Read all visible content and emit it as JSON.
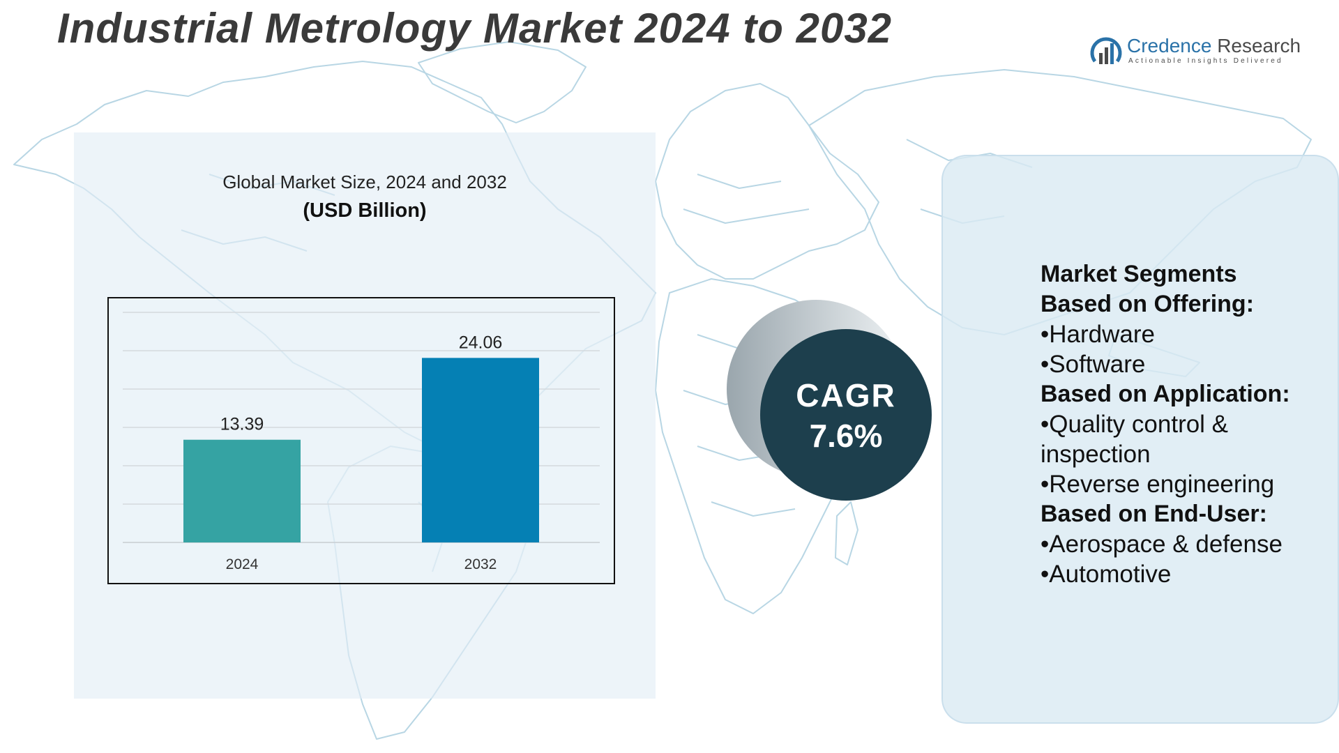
{
  "title": "Industrial Metrology Market 2024 to 2032",
  "logo": {
    "brand_primary": "Credence",
    "brand_secondary": "Research",
    "tagline": "Actionable Insights Delivered",
    "icon": "bar-chart-logo-icon"
  },
  "chart_data": {
    "type": "bar",
    "title": "Global Market Size, 2024 and 2032",
    "subtitle": "(USD Billion)",
    "categories": [
      "2024",
      "2032"
    ],
    "values": [
      13.39,
      24.06
    ],
    "value_labels": [
      "13.39",
      "24.06"
    ],
    "colors": [
      "#35a3a3",
      "#0580b4"
    ],
    "xlabel": "",
    "ylabel": "",
    "ylim": [
      0,
      30
    ],
    "grid": true
  },
  "cagr": {
    "label": "CAGR",
    "value": "7.6%"
  },
  "segments": {
    "heading": "Market Segments",
    "groups": [
      {
        "heading": "Based on Offering:",
        "items": [
          "•Hardware",
          "•Software"
        ]
      },
      {
        "heading": "Based on Application:",
        "items": [
          "•Quality control & inspection",
          "•Reverse engineering"
        ]
      },
      {
        "heading": "Based on End-User:",
        "items": [
          "•Aerospace & defense",
          "•Automotive"
        ]
      }
    ]
  },
  "colors": {
    "title": "#3a3a3a",
    "accent_dark": "#1d3f4d",
    "map_stroke": "#b8d6e4",
    "brand_blue": "#2a72a8"
  }
}
